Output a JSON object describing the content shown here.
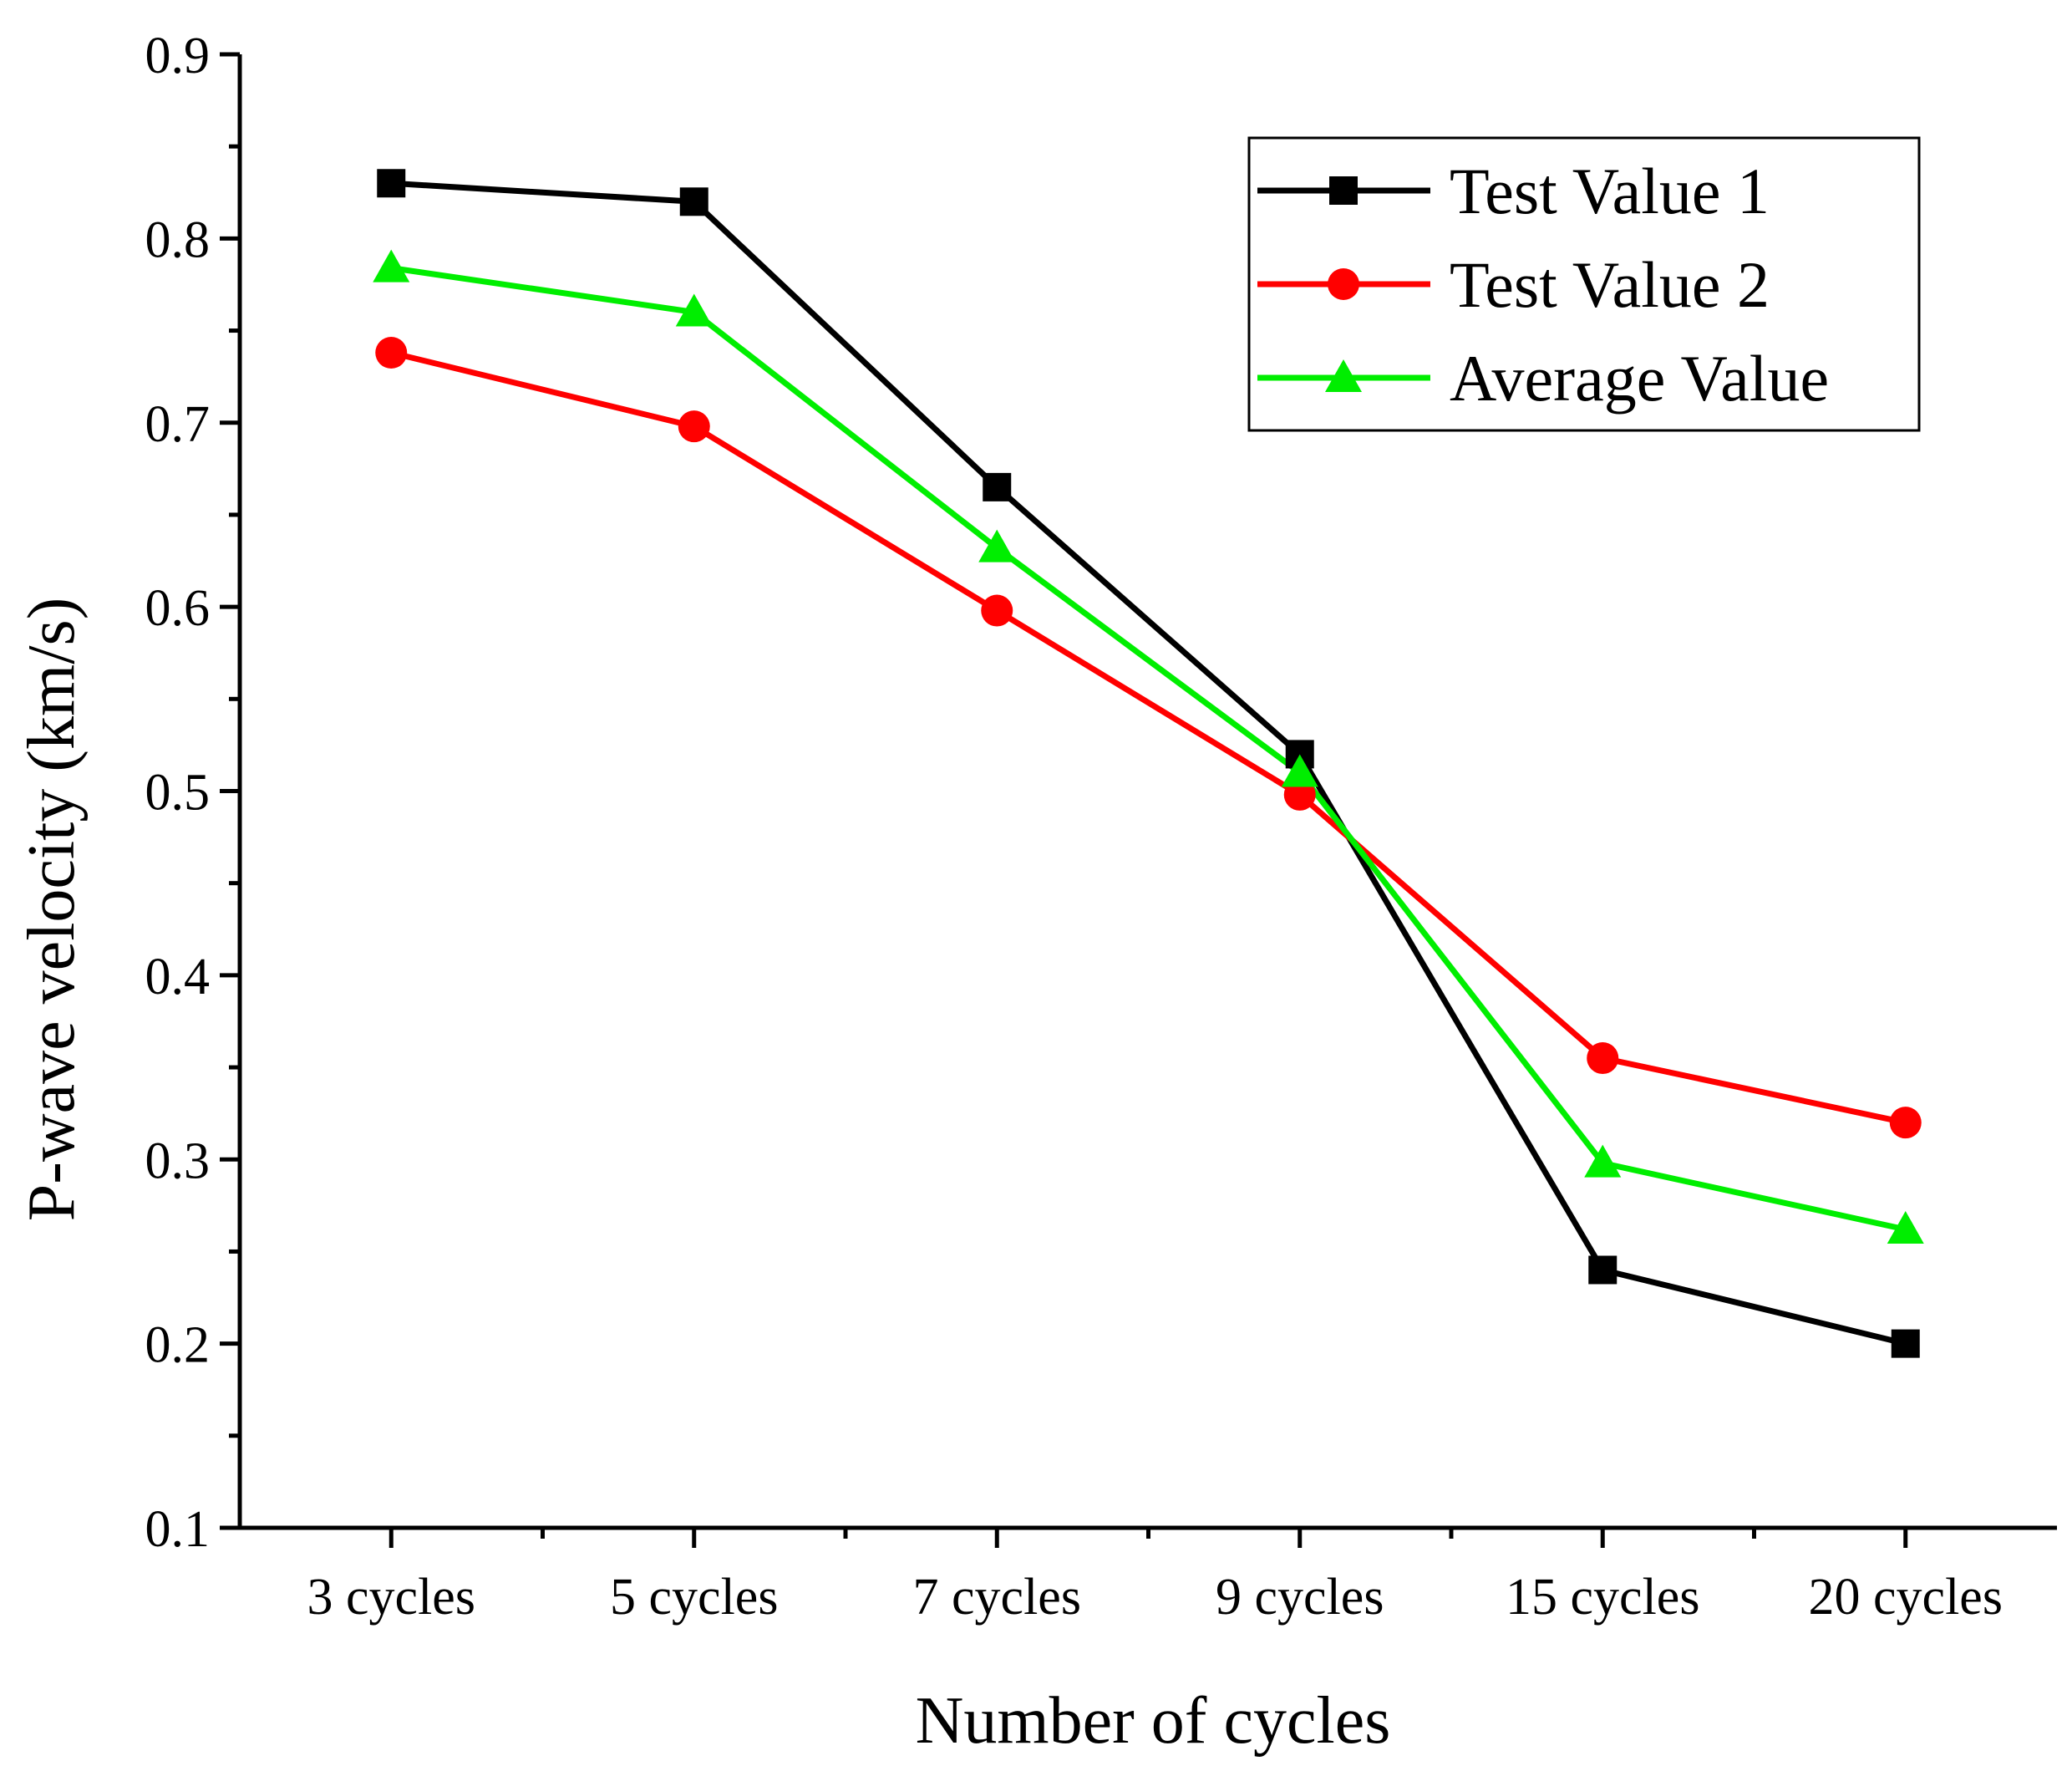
{
  "chart_data": {
    "type": "line",
    "title": "",
    "xlabel": "Number of cycles",
    "ylabel": "P-wave velocity (km/s)",
    "categories": [
      "3 cycles",
      "5 cycles",
      "7 cycles",
      "9 cycles",
      "15 cycles",
      "20 cycles"
    ],
    "ylim": [
      0.1,
      0.9
    ],
    "yticks": [
      0.1,
      0.2,
      0.3,
      0.4,
      0.5,
      0.6,
      0.7,
      0.8,
      0.9
    ],
    "ytick_labels": [
      "0.1",
      "0.2",
      "0.3",
      "0.4",
      "0.5",
      "0.6",
      "0.7",
      "0.8",
      "0.9"
    ],
    "grid": false,
    "legend_position": "top-right",
    "series": [
      {
        "name": "Test Value 1",
        "color": "#000000",
        "marker": "square",
        "values": [
          0.83,
          0.82,
          0.665,
          0.52,
          0.24,
          0.2
        ]
      },
      {
        "name": "Test Value 2",
        "color": "#ff0000",
        "marker": "circle",
        "values": [
          0.738,
          0.698,
          0.598,
          0.498,
          0.355,
          0.32
        ]
      },
      {
        "name": "Average Value",
        "color": "#00ee00",
        "marker": "triangle",
        "values": [
          0.784,
          0.76,
          0.632,
          0.51,
          0.298,
          0.262
        ]
      }
    ]
  }
}
